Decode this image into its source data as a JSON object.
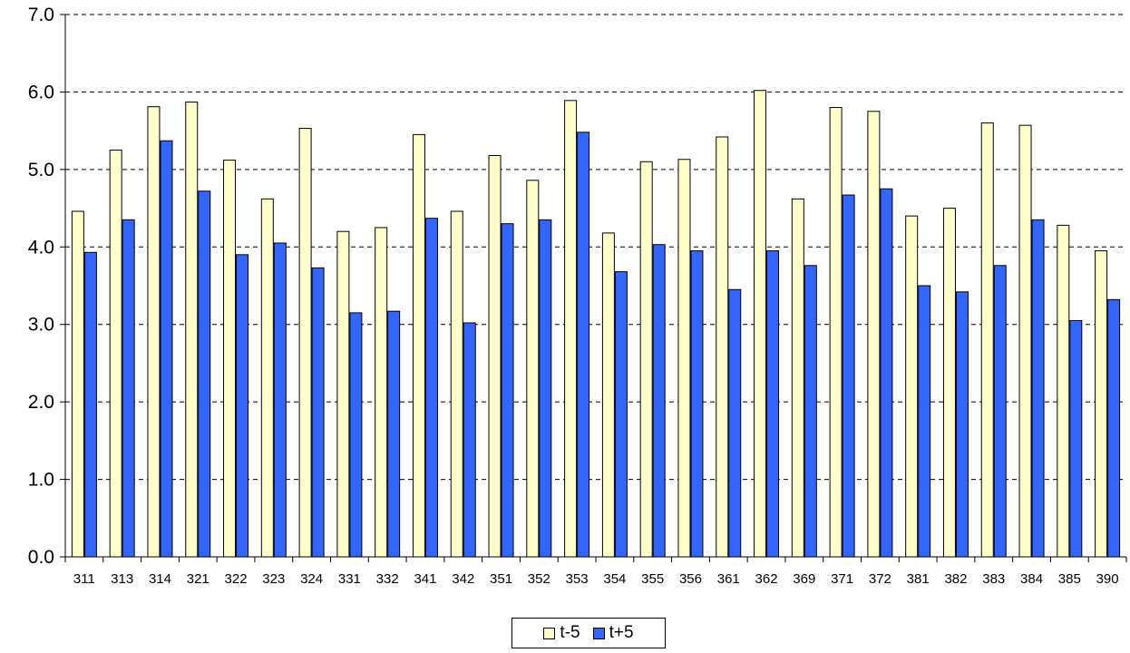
{
  "chart_data": {
    "type": "bar",
    "title": "",
    "xlabel": "",
    "ylabel": "",
    "ylim": [
      0,
      7
    ],
    "yticks": [
      "0.0",
      "1.0",
      "2.0",
      "3.0",
      "4.0",
      "5.0",
      "6.0",
      "7.0"
    ],
    "grid": "horizontal dashed",
    "legend_position": "bottom-center",
    "categories": [
      "311",
      "313",
      "314",
      "321",
      "322",
      "323",
      "324",
      "331",
      "332",
      "341",
      "342",
      "351",
      "352",
      "353",
      "354",
      "355",
      "356",
      "361",
      "362",
      "369",
      "371",
      "372",
      "381",
      "382",
      "383",
      "384",
      "385",
      "390"
    ],
    "series": [
      {
        "name": "t-5",
        "color": "#FFFFCC",
        "values": [
          4.46,
          5.25,
          5.81,
          5.87,
          5.12,
          4.62,
          5.53,
          4.2,
          4.25,
          5.45,
          4.46,
          5.18,
          4.86,
          5.89,
          4.18,
          5.1,
          5.13,
          5.42,
          6.02,
          4.62,
          5.8,
          5.75,
          4.4,
          4.5,
          5.6,
          5.57,
          4.28,
          3.95
        ]
      },
      {
        "name": "t+5",
        "color": "#3366FF",
        "values": [
          3.93,
          4.35,
          5.37,
          4.72,
          3.9,
          4.05,
          3.73,
          3.15,
          3.17,
          4.37,
          3.02,
          4.3,
          4.35,
          5.48,
          3.68,
          4.03,
          3.95,
          3.45,
          3.95,
          3.76,
          4.67,
          4.75,
          3.5,
          3.42,
          3.76,
          4.35,
          3.05,
          3.32
        ]
      }
    ]
  }
}
